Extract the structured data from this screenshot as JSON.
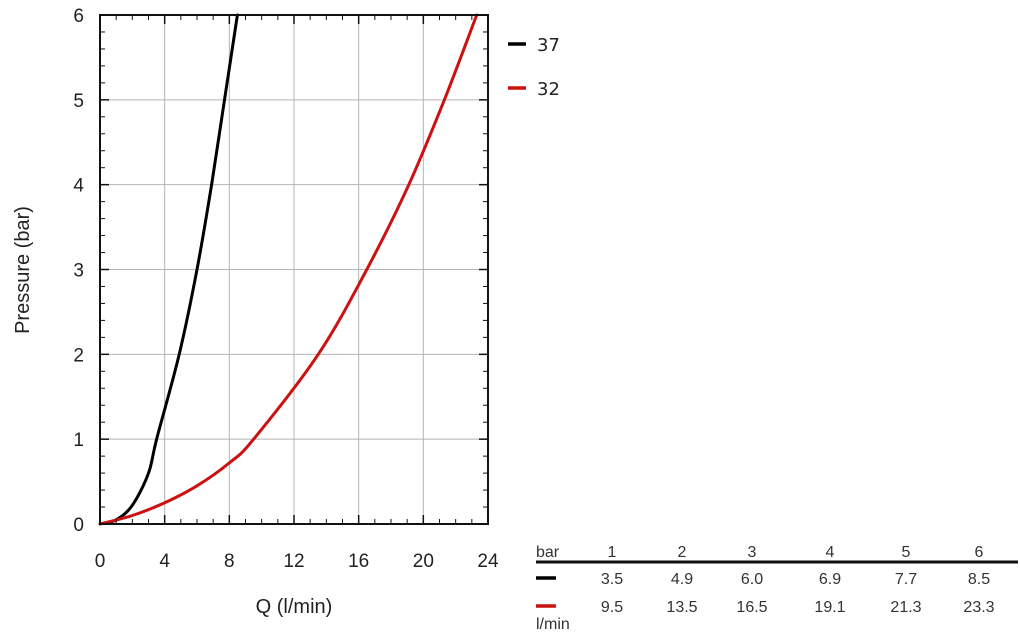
{
  "chart_data": {
    "type": "line",
    "xlabel": "Q (l/min)",
    "ylabel": "Pressure (bar)",
    "xlim": [
      0,
      24
    ],
    "ylim": [
      0,
      6
    ],
    "x_ticks": [
      "0",
      "4",
      "8",
      "12",
      "16",
      "20",
      "24"
    ],
    "y_ticks": [
      "0",
      "1",
      "2",
      "3",
      "4",
      "5",
      "6"
    ],
    "grid": true,
    "legend_position": "top-right, outside plot",
    "series": [
      {
        "name": "37",
        "color": "#000000",
        "points": [
          [
            0,
            0
          ],
          [
            1.0,
            0.05
          ],
          [
            2.0,
            0.22
          ],
          [
            3.0,
            0.6
          ],
          [
            3.5,
            1
          ],
          [
            4.9,
            2
          ],
          [
            6.0,
            3
          ],
          [
            6.9,
            4
          ],
          [
            7.7,
            5
          ],
          [
            8.5,
            6
          ]
        ]
      },
      {
        "name": "32",
        "color": "#cc1111",
        "points": [
          [
            0,
            0
          ],
          [
            2.0,
            0.1
          ],
          [
            4.0,
            0.25
          ],
          [
            6.0,
            0.45
          ],
          [
            8.0,
            0.72
          ],
          [
            9.5,
            1
          ],
          [
            13.5,
            2
          ],
          [
            16.5,
            3
          ],
          [
            19.1,
            4
          ],
          [
            21.3,
            5
          ],
          [
            23.3,
            6
          ]
        ]
      }
    ]
  },
  "table": {
    "header_label": "bar",
    "unit_label": "l/min",
    "pressures": [
      "1",
      "2",
      "3",
      "4",
      "5",
      "6"
    ],
    "rows": [
      {
        "color": "#000000",
        "values": [
          "3.5",
          "4.9",
          "6.0",
          "6.9",
          "7.7",
          "8.5"
        ]
      },
      {
        "color": "#cc1111",
        "values": [
          "9.5",
          "13.5",
          "16.5",
          "19.1",
          "21.3",
          "23.3"
        ]
      }
    ]
  }
}
